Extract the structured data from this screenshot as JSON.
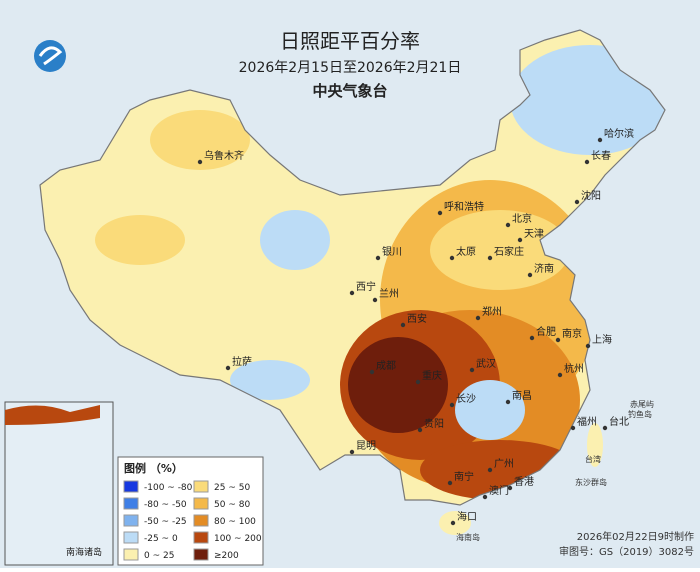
{
  "header": {
    "title": "日照距平百分率",
    "subtitle": "2026年2月15日至2026年2月21日",
    "organization": "中央气象台"
  },
  "cities": [
    "哈尔滨",
    "长春",
    "沈阳",
    "乌鲁木齐",
    "呼和浩特",
    "北京",
    "天津",
    "石家庄",
    "太原",
    "银川",
    "济南",
    "西宁",
    "兰州",
    "郑州",
    "西安",
    "合肥",
    "南京",
    "上海",
    "拉萨",
    "成都",
    "重庆",
    "武汉",
    "杭州",
    "长沙",
    "南昌",
    "贵阳",
    "昆明",
    "福州",
    "台北",
    "南宁",
    "广州",
    "香港",
    "澳门",
    "海口"
  ],
  "places": [
    "台湾",
    "赤尾屿",
    "钓鱼岛",
    "东沙群岛",
    "海南岛"
  ],
  "inset": {
    "label": "南海诸岛"
  },
  "legend": {
    "title": "图例 （%）",
    "items": [
      {
        "label": "-100 ~ -80",
        "color": "#1638e0"
      },
      {
        "label": "-80 ~ -50",
        "color": "#3f7fe6"
      },
      {
        "label": "-50 ~ -25",
        "color": "#7fb2ee"
      },
      {
        "label": "-25 ~ 0",
        "color": "#bcdcf6"
      },
      {
        "label": "0 ~ 25",
        "color": "#fbf0b0"
      },
      {
        "label": "25 ~ 50",
        "color": "#fadb7a"
      },
      {
        "label": "50 ~ 80",
        "color": "#f4b94a"
      },
      {
        "label": "80 ~ 100",
        "color": "#e38c25"
      },
      {
        "label": "100 ~ 200",
        "color": "#b8480f"
      },
      {
        "label": "≥200",
        "color": "#6e1e0c"
      }
    ]
  },
  "footer": {
    "made": "2026年02月22日9时制作",
    "approval": "审图号：GS（2019）3082号"
  }
}
